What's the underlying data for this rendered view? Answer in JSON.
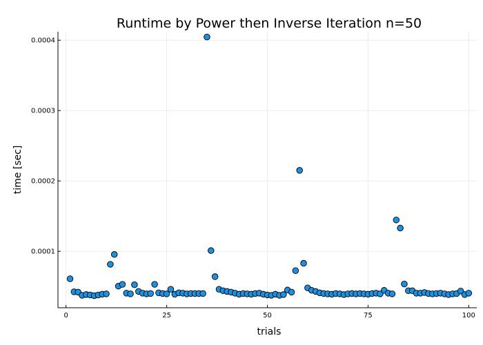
{
  "chart_data": {
    "type": "scatter",
    "title": "Runtime by Power then Inverse Iteration  n=50",
    "xlabel": "trials",
    "ylabel": "time [sec]",
    "xlim": [
      -2,
      102
    ],
    "ylim": [
      1.98e-05,
      0.000412
    ],
    "grid": true,
    "legend": "none",
    "xticks": [
      0,
      25,
      50,
      75,
      100
    ],
    "xtick_labels": [
      "0",
      "25",
      "50",
      "75",
      "100"
    ],
    "yticks": [
      0.0001,
      0.0002,
      0.0003,
      0.0004
    ],
    "ytick_labels": [
      "0.0001",
      "0.0002",
      "0.0003",
      "0.0004"
    ],
    "colors": {
      "marker": "#1e90e0",
      "marker_edge": "#000000",
      "grid": "#ececec",
      "axis": "#000000"
    },
    "series": [
      {
        "x": [
          1,
          2,
          3,
          4,
          5,
          6,
          7,
          8,
          9,
          10,
          11,
          12,
          13,
          14,
          15,
          16,
          17,
          18,
          19,
          20,
          21,
          22,
          23,
          24,
          25,
          26,
          27,
          28,
          29,
          30,
          31,
          32,
          33,
          34,
          35,
          36,
          37,
          38,
          39,
          40,
          41,
          42,
          43,
          44,
          45,
          46,
          47,
          48,
          49,
          50,
          51,
          52,
          53,
          54,
          55,
          56,
          57,
          58,
          59,
          60,
          61,
          62,
          63,
          64,
          65,
          66,
          67,
          68,
          69,
          70,
          71,
          72,
          73,
          74,
          75,
          76,
          77,
          78,
          79,
          80,
          81,
          82,
          83,
          84,
          85,
          86,
          87,
          88,
          89,
          90,
          91,
          92,
          93,
          94,
          95,
          96,
          97,
          98,
          99,
          100
        ],
        "y": [
          6.1e-05,
          4.25e-05,
          4.2e-05,
          3.75e-05,
          3.85e-05,
          3.8e-05,
          3.7e-05,
          3.8e-05,
          3.9e-05,
          3.95e-05,
          8.15e-05,
          9.55e-05,
          5.05e-05,
          5.3e-05,
          4.05e-05,
          3.95e-05,
          5.25e-05,
          4.3e-05,
          4.05e-05,
          3.95e-05,
          4e-05,
          5.3e-05,
          4.1e-05,
          4e-05,
          3.95e-05,
          4.6e-05,
          3.9e-05,
          4.1e-05,
          4.05e-05,
          3.95e-05,
          4e-05,
          4e-05,
          4e-05,
          4e-05,
          0.0004045,
          0.000101,
          6.4e-05,
          4.6e-05,
          4.4e-05,
          4.3e-05,
          4.2e-05,
          4.05e-05,
          3.9e-05,
          4e-05,
          3.95e-05,
          3.9e-05,
          4e-05,
          4.05e-05,
          3.9e-05,
          3.8e-05,
          3.75e-05,
          3.9e-05,
          3.75e-05,
          3.85e-05,
          4.5e-05,
          4.2e-05,
          7.25e-05,
          0.000215,
          8.3e-05,
          4.8e-05,
          4.45e-05,
          4.3e-05,
          4.1e-05,
          4e-05,
          3.95e-05,
          3.9e-05,
          4e-05,
          3.95e-05,
          3.85e-05,
          3.95e-05,
          4e-05,
          3.95e-05,
          4e-05,
          3.95e-05,
          3.9e-05,
          4e-05,
          4.05e-05,
          3.95e-05,
          4.45e-05,
          4.05e-05,
          3.95e-05,
          0.0001445,
          0.000133,
          5.35e-05,
          4.4e-05,
          4.4e-05,
          4.05e-05,
          4.05e-05,
          4.15e-05,
          4e-05,
          3.95e-05,
          4e-05,
          4.05e-05,
          3.95e-05,
          3.85e-05,
          3.95e-05,
          4e-05,
          4.35e-05,
          3.85e-05,
          4.05e-05
        ]
      }
    ]
  }
}
